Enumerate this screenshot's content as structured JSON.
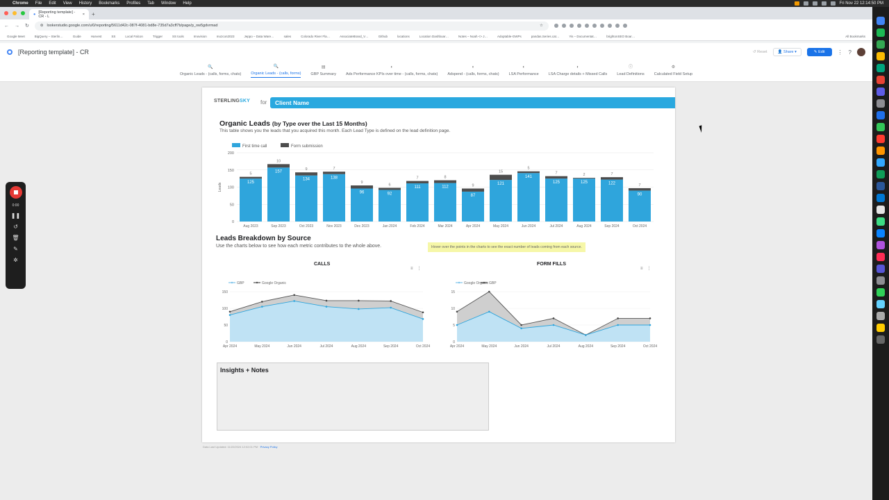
{
  "menubar": {
    "app": "Chrome",
    "items": [
      "File",
      "Edit",
      "View",
      "History",
      "Bookmarks",
      "Profiles",
      "Tab",
      "Window",
      "Help"
    ],
    "clock": "Fri Nov 22  12:14:50 PM"
  },
  "browser": {
    "tab_title": "[Reporting template] - CR - L",
    "url": "lookerstudio.google.com/u/0/reporting/5611d42c-087f-4081-bd8e-735d7a3cff7b/page/p_ow5gdvrmad",
    "bookmarks": [
      "Google Meet",
      "BigQuery – Sterlin…",
      "Guide",
      "Harvest",
      "SS",
      "Local Falcon",
      "Trigger",
      "SS tools",
      "Imovision",
      "mozcon2023",
      "Jeppo – Data Ware…",
      "sales",
      "Colorado River Fla…",
      "AssociateBrand_V…",
      "Github",
      "locations",
      "Location Dashboar…",
      "Notes – Noah <> J…",
      "Adoptable-GWPs",
      "pandas.Series.cat…",
      "Yis – Documentat…",
      "brightonSEO Boar…"
    ],
    "all_bookmarks": "All Bookmarks"
  },
  "header": {
    "title": "[Reporting template] - CR",
    "reset": "Reset",
    "share": "Share",
    "edit": "Edit"
  },
  "pages": [
    {
      "label": "Organic Leads - (calls, forms, chats)",
      "active": false
    },
    {
      "label": "Organic Leads - (calls, forms)",
      "active": true
    },
    {
      "label": "GBP Summary",
      "active": false
    },
    {
      "label": "Ads Performance KPIs over time - (calls, forms, chats)",
      "active": false
    },
    {
      "label": "Adspend - (calls, forms, chats)",
      "active": false
    },
    {
      "label": "LSA Performance",
      "active": false
    },
    {
      "label": "LSA Charge details + Missed Calls",
      "active": false
    },
    {
      "label": "Lead Definitions",
      "active": false
    },
    {
      "label": "Calculated Field Setup",
      "active": false
    }
  ],
  "report": {
    "brand_left": "STERLING",
    "brand_right": "SKY",
    "for_label": "for",
    "client_name": "Client Name",
    "organic_title": "Organic Leads",
    "organic_subtitle": "(by Type over the Last 15 Months)",
    "organic_desc": "This table shows you the leads that you acquired this month.  Each Lead Type is defined on the lead definition page.",
    "breakdown_title": "Leads Breakdown by Source",
    "breakdown_desc": "Use the charts below to see how each metric contributes to the whole above.",
    "hover_note": "Hover over the points in the charts to see the exact number of leads coming from each source.",
    "calls_title": "CALLS",
    "formfills_title": "FORM FILLS",
    "insights_title": "Insights + Notes",
    "footer_prefix": "Data Last Updated: 11/22/2024 12:02:01 PM",
    "footer_link": "Privacy Policy"
  },
  "recorder": {
    "time": "0:00"
  },
  "colors": {
    "accent": "#1a73e8",
    "brand": "#29a8df",
    "series_primary": "#2fa5dc",
    "series_secondary": "#4d4d4d"
  },
  "chart_data": [
    {
      "type": "bar",
      "stacked": true,
      "categories": [
        "Aug 2023",
        "Sep 2023",
        "Oct 2023",
        "Nov 2023",
        "Dec 2023",
        "Jan 2024",
        "Feb 2024",
        "Mar 2024",
        "Apr 2024",
        "May 2024",
        "Jun 2024",
        "Jul 2024",
        "Aug 2024",
        "Sep 2024",
        "Oct 2024"
      ],
      "series": [
        {
          "name": "First time call",
          "color": "#2fa5dc",
          "values": [
            125,
            157,
            134,
            138,
            96,
            92,
            111,
            112,
            87,
            121,
            141,
            125,
            125,
            122,
            90
          ]
        },
        {
          "name": "Form submission",
          "color": "#4d4d4d",
          "values": [
            5,
            10,
            9,
            7,
            9,
            6,
            7,
            8,
            9,
            15,
            5,
            7,
            2,
            7,
            7
          ]
        }
      ],
      "ylabel": "Leads",
      "ylim": [
        0,
        200
      ],
      "yticks": [
        0,
        50,
        100,
        150,
        200
      ],
      "legend": "top-left"
    },
    {
      "type": "area",
      "stacked": true,
      "title": "CALLS",
      "x": [
        "Apr 2024",
        "May 2024",
        "Jun 2024",
        "Jul 2024",
        "Aug 2024",
        "Sep 2024",
        "Oct 2024"
      ],
      "series": [
        {
          "name": "GBP",
          "color": "#7cc3ea",
          "values": [
            80,
            105,
            122,
            105,
            98,
            102,
            68
          ]
        },
        {
          "name": "Google Organic",
          "color": "#4d4d4d",
          "values": [
            10,
            15,
            18,
            18,
            25,
            20,
            20
          ]
        }
      ],
      "ylim": [
        0,
        150
      ],
      "yticks": [
        0,
        50,
        100,
        150
      ],
      "legend": "top-left"
    },
    {
      "type": "area",
      "stacked": true,
      "title": "FORM FILLS",
      "x": [
        "Apr 2024",
        "May 2024",
        "Jun 2024",
        "Jul 2024",
        "Aug 2024",
        "Sep 2024",
        "Oct 2024"
      ],
      "series": [
        {
          "name": "Google Organic",
          "color": "#7cc3ea",
          "values": [
            5,
            9,
            4,
            5,
            2,
            5,
            5
          ]
        },
        {
          "name": "GBP",
          "color": "#4d4d4d",
          "values": [
            4,
            6,
            1,
            2,
            0,
            2,
            2
          ]
        }
      ],
      "ylim": [
        0,
        15
      ],
      "yticks": [
        0,
        5,
        10,
        15
      ],
      "legend": "top-left"
    }
  ]
}
